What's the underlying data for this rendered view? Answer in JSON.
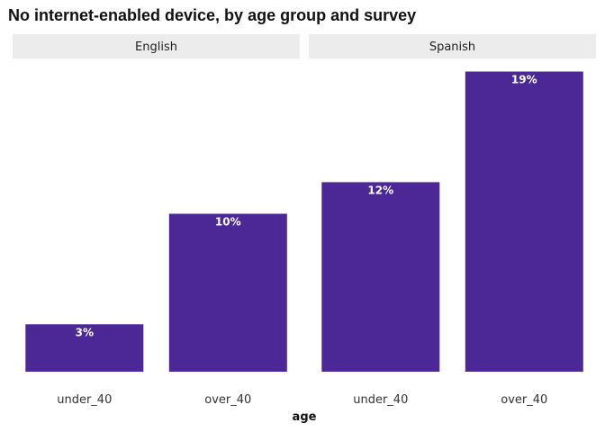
{
  "chart_data": {
    "type": "bar",
    "title": "No internet-enabled device, by age group and survey",
    "xlabel": "age",
    "ylabel": "",
    "ylim": [
      0,
      19.6
    ],
    "grid": false,
    "colors": {
      "bar": "#4b2896",
      "strip": "#ececec"
    },
    "facets": [
      {
        "name": "English",
        "categories": [
          "under_40",
          "over_40"
        ],
        "values": [
          3,
          10
        ],
        "labels": [
          "3%",
          "10%"
        ]
      },
      {
        "name": "Spanish",
        "categories": [
          "under_40",
          "over_40"
        ],
        "values": [
          12,
          19
        ],
        "labels": [
          "12%",
          "19%"
        ]
      }
    ]
  }
}
